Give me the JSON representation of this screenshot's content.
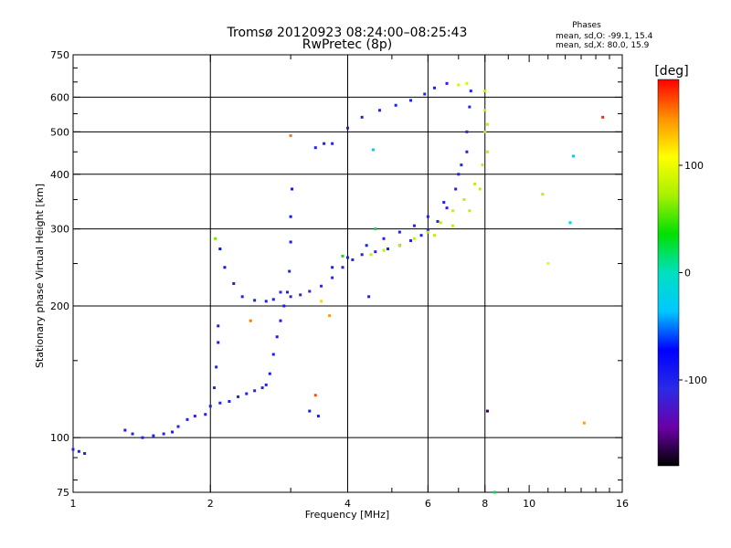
{
  "header": {
    "title_line1": "Tromsø 20120923 08:24:00–08:25:43",
    "title_line2": "RwPretec (8p)",
    "phases_heading": "Phases",
    "phases_o": "mean, sd,O: -99.1, 15.4",
    "phases_x": "mean, sd,X:  80.0, 15.9"
  },
  "colorbar": {
    "label": "[deg]",
    "tick_labels": [
      "100",
      "0",
      "-100"
    ],
    "tick_values": [
      100,
      0,
      -100
    ],
    "range": [
      -180,
      180
    ],
    "stops": [
      "#000000",
      "#6b00a8",
      "#2a2ae6",
      "#0000ff",
      "#00c8ff",
      "#00e0c0",
      "#00e000",
      "#a8f000",
      "#ffff00",
      "#ff9000",
      "#ff0000"
    ]
  },
  "chart_data": {
    "type": "scatter",
    "title": "Tromsø 20120923 08:24:00–08:25:43",
    "subtitle": "RwPretec (8p)",
    "xlabel": "Frequency [MHz]",
    "ylabel": "Stationary phase Virtual Height [km]",
    "xscale": "log",
    "yscale": "log",
    "xlim": [
      1,
      16
    ],
    "ylim": [
      75,
      750
    ],
    "x_ticks": [
      1,
      2,
      4,
      6,
      8,
      10,
      16
    ],
    "x_tick_labels": [
      "1",
      "2",
      "4",
      "6",
      "8",
      "10",
      "16"
    ],
    "y_ticks": [
      75,
      100,
      200,
      300,
      400,
      500,
      600,
      750
    ],
    "y_tick_labels": [
      "75",
      "100",
      "200",
      "300",
      "400",
      "500",
      "600",
      "750"
    ],
    "x_gridlines": [
      2,
      4,
      6,
      8
    ],
    "y_gridlines": [
      100,
      200,
      300,
      400,
      500,
      600
    ],
    "grid": true,
    "color_variable": "phase (deg)",
    "series": [
      {
        "name": "O",
        "points": [
          [
            1.0,
            94,
            -99
          ],
          [
            1.03,
            93,
            -99
          ],
          [
            1.06,
            92,
            -99
          ],
          [
            1.3,
            104,
            -95
          ],
          [
            1.35,
            102,
            -100
          ],
          [
            1.42,
            100,
            -100
          ],
          [
            1.5,
            101,
            -100
          ],
          [
            1.58,
            102,
            -100
          ],
          [
            1.65,
            103,
            -95
          ],
          [
            1.7,
            106,
            -100
          ],
          [
            1.78,
            110,
            -100
          ],
          [
            1.85,
            112,
            -100
          ],
          [
            1.95,
            113,
            -100
          ],
          [
            2.0,
            118,
            -100
          ],
          [
            2.04,
            130,
            -100
          ],
          [
            2.06,
            145,
            -99
          ],
          [
            2.08,
            165,
            -95
          ],
          [
            2.08,
            180,
            -95
          ],
          [
            2.1,
            120,
            -100
          ],
          [
            2.2,
            121,
            -100
          ],
          [
            2.3,
            124,
            -100
          ],
          [
            2.4,
            126,
            -100
          ],
          [
            2.5,
            128,
            -100
          ],
          [
            2.6,
            130,
            -100
          ],
          [
            2.65,
            132,
            -100
          ],
          [
            2.7,
            140,
            -95
          ],
          [
            2.75,
            155,
            -95
          ],
          [
            2.8,
            170,
            -95
          ],
          [
            2.85,
            185,
            -95
          ],
          [
            2.9,
            200,
            -95
          ],
          [
            2.95,
            215,
            -100
          ],
          [
            2.98,
            240,
            -100
          ],
          [
            3.0,
            280,
            -95
          ],
          [
            3.0,
            320,
            -90
          ],
          [
            3.02,
            370,
            -90
          ],
          [
            2.1,
            270,
            -80
          ],
          [
            2.15,
            245,
            -90
          ],
          [
            2.25,
            225,
            -95
          ],
          [
            2.35,
            210,
            -100
          ],
          [
            2.5,
            206,
            -100
          ],
          [
            2.65,
            205,
            -100
          ],
          [
            2.75,
            207,
            -100
          ],
          [
            2.85,
            215,
            -105
          ],
          [
            3.0,
            210,
            -120
          ],
          [
            3.15,
            212,
            -120
          ],
          [
            3.3,
            216,
            -115
          ],
          [
            3.5,
            222,
            -110
          ],
          [
            3.7,
            232,
            -110
          ],
          [
            3.9,
            245,
            -105
          ],
          [
            4.1,
            255,
            -100
          ],
          [
            4.3,
            262,
            -100
          ],
          [
            4.6,
            266,
            -105
          ],
          [
            4.9,
            270,
            -100
          ],
          [
            5.2,
            275,
            -100
          ],
          [
            5.5,
            282,
            -100
          ],
          [
            5.8,
            290,
            -100
          ],
          [
            6.0,
            298,
            -100
          ],
          [
            6.3,
            312,
            -100
          ],
          [
            6.6,
            335,
            -100
          ],
          [
            6.9,
            370,
            -100
          ],
          [
            7.1,
            420,
            -100
          ],
          [
            7.3,
            500,
            -105
          ],
          [
            7.4,
            570,
            -105
          ],
          [
            7.45,
            620,
            -100
          ],
          [
            3.7,
            245,
            -100
          ],
          [
            4.0,
            258,
            -100
          ],
          [
            4.4,
            275,
            -100
          ],
          [
            4.8,
            285,
            -100
          ],
          [
            5.2,
            295,
            -100
          ],
          [
            5.6,
            305,
            -100
          ],
          [
            6.0,
            320,
            -100
          ],
          [
            6.5,
            345,
            -100
          ],
          [
            7.0,
            400,
            -100
          ],
          [
            7.3,
            450,
            -100
          ],
          [
            4.0,
            510,
            -100
          ],
          [
            4.3,
            540,
            -100
          ],
          [
            4.7,
            560,
            -100
          ],
          [
            5.1,
            575,
            -100
          ],
          [
            5.5,
            590,
            -100
          ],
          [
            5.9,
            610,
            -100
          ],
          [
            6.2,
            630,
            -100
          ],
          [
            6.6,
            645,
            -100
          ],
          [
            3.4,
            460,
            -100
          ],
          [
            3.55,
            470,
            -100
          ],
          [
            3.7,
            470,
            -100
          ],
          [
            3.3,
            115,
            -95
          ],
          [
            3.45,
            112,
            -95
          ],
          [
            4.45,
            210,
            -100
          ]
        ]
      },
      {
        "name": "X",
        "points": [
          [
            5.2,
            275,
            80
          ],
          [
            5.6,
            285,
            80
          ],
          [
            6.0,
            295,
            80
          ],
          [
            6.4,
            310,
            80
          ],
          [
            6.8,
            330,
            82
          ],
          [
            7.2,
            350,
            80
          ],
          [
            7.6,
            380,
            80
          ],
          [
            7.9,
            420,
            80
          ],
          [
            8.0,
            500,
            80
          ],
          [
            8.0,
            560,
            80
          ],
          [
            8.0,
            620,
            80
          ],
          [
            6.2,
            290,
            80
          ],
          [
            6.8,
            305,
            80
          ],
          [
            7.4,
            330,
            80
          ],
          [
            7.8,
            370,
            80
          ],
          [
            8.1,
            450,
            80
          ],
          [
            8.1,
            520,
            80
          ],
          [
            4.5,
            262,
            80
          ],
          [
            4.8,
            268,
            80
          ],
          [
            7.0,
            640,
            90
          ],
          [
            7.3,
            645,
            90
          ],
          [
            2.05,
            285,
            60
          ],
          [
            3.0,
            490,
            150
          ],
          [
            3.9,
            260,
            30
          ],
          [
            4.55,
            455,
            -30
          ],
          [
            4.6,
            300,
            20
          ],
          [
            10.7,
            360,
            80
          ],
          [
            11.0,
            250,
            100
          ],
          [
            12.5,
            440,
            -30
          ],
          [
            12.3,
            310,
            -20
          ],
          [
            13.2,
            108,
            140
          ],
          [
            14.5,
            540,
            170
          ],
          [
            3.65,
            190,
            140
          ],
          [
            3.5,
            205,
            120
          ],
          [
            3.4,
            125,
            160
          ],
          [
            8.4,
            75,
            20
          ],
          [
            8.1,
            115,
            -160
          ],
          [
            2.45,
            185,
            150
          ]
        ]
      }
    ]
  }
}
